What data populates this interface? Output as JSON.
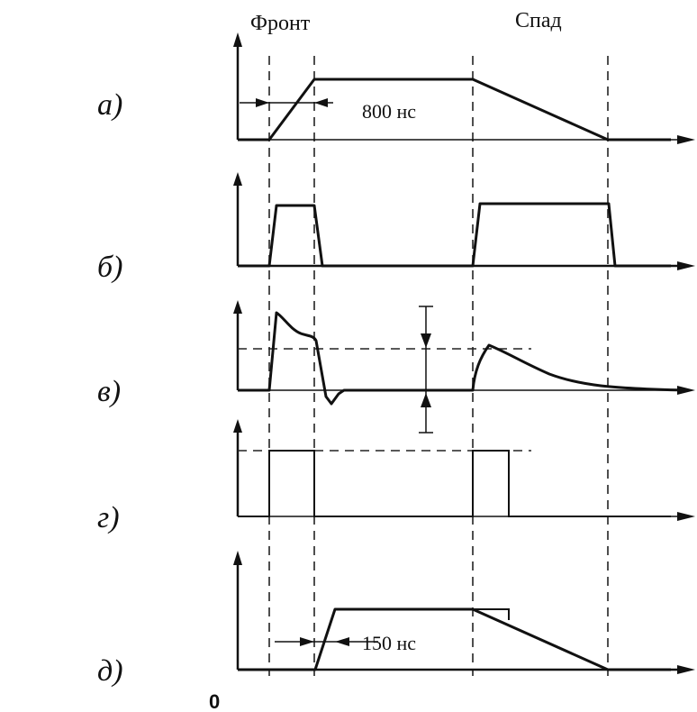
{
  "headers": {
    "front": "Фронт",
    "fall": "Спад"
  },
  "panels": [
    {
      "id": "a",
      "label": "а)"
    },
    {
      "id": "b",
      "label": "б)"
    },
    {
      "id": "v",
      "label": "в)"
    },
    {
      "id": "g",
      "label": "г)"
    },
    {
      "id": "d",
      "label": "д)"
    }
  ],
  "annotations": {
    "rise_time": "800 нс",
    "delay": "150 нс",
    "origin": "0"
  }
}
